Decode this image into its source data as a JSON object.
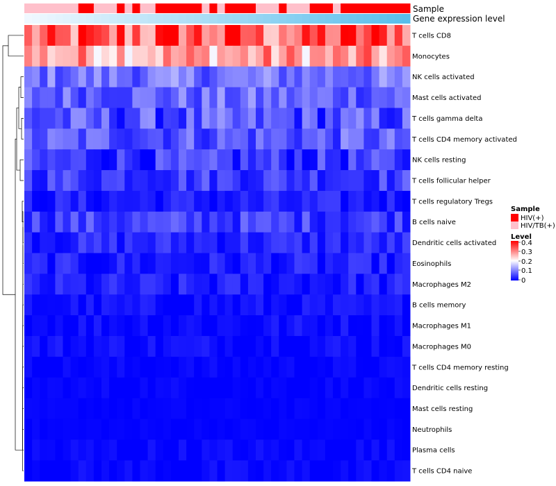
{
  "chart_data": {
    "type": "heatmap",
    "annotation_labels": {
      "sample": "Sample",
      "expression": "Gene expression level"
    },
    "rows": [
      "T cells CD8",
      "Monocytes",
      "NK cells activated",
      "Mast cells activated",
      "T cells gamma delta",
      "T cells CD4 memory activated",
      "NK cells resting",
      "T cells follicular helper",
      "T cells regulatory  Tregs",
      "B cells naive",
      "Dendritic cells activated",
      "Eosinophils",
      "Macrophages M2",
      "B cells memory",
      "Macrophages M1",
      "Macrophages M0",
      "T cells CD4 memory resting",
      "Dendritic cells resting",
      "Mast cells resting",
      "Neutrophils",
      "Plasma cells",
      "T cells CD4 naive"
    ],
    "sample_groups": "LLLLLLLHHLLLHLHLLHHHHHHLHLHHHHLLLHLLLHHHLHHHHHHHHH",
    "n_columns": 50,
    "row_means": [
      0.3,
      0.27,
      0.09,
      0.08,
      0.06,
      0.07,
      0.04,
      0.05,
      0.02,
      0.05,
      0.03,
      0.02,
      0.02,
      0.01,
      0.01,
      0.01,
      0.004,
      0.003,
      0.002,
      0.002,
      0.004,
      0.004
    ],
    "row_spread": [
      0.09,
      0.08,
      0.05,
      0.05,
      0.06,
      0.05,
      0.05,
      0.04,
      0.03,
      0.04,
      0.03,
      0.03,
      0.03,
      0.02,
      0.02,
      0.02,
      0.01,
      0.01,
      0.005,
      0.005,
      0.015,
      0.015
    ],
    "dendrogram_merge": "hierarchical clustering of rows (left tree)",
    "legend": {
      "sample": {
        "title": "Sample",
        "items": [
          {
            "label": "HIV(+)",
            "color": "#FF0000"
          },
          {
            "label": "HIV/TB(+)",
            "color": "#FFC0CB"
          }
        ]
      },
      "level": {
        "title": "Level",
        "ticks": [
          "0.4",
          "0.3",
          "0.2",
          "0.1",
          "0"
        ],
        "range": [
          0,
          0.4
        ],
        "colors": [
          "#0000FF",
          "#FFFFFF",
          "#FF0000"
        ]
      }
    }
  }
}
